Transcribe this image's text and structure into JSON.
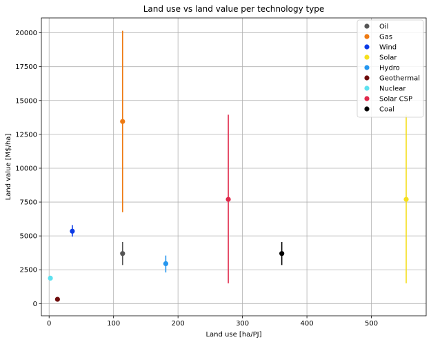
{
  "chart_data": {
    "type": "scatter",
    "title": "Land use vs land value per technology type",
    "xlabel": "Land use [ha/PJ]",
    "ylabel": "Land value [M$/ha]",
    "xlim": [
      -12,
      585
    ],
    "ylim": [
      -900,
      21100
    ],
    "xticks": [
      0,
      100,
      200,
      300,
      400,
      500
    ],
    "yticks": [
      0,
      2500,
      5000,
      7500,
      10000,
      12500,
      15000,
      17500,
      20000
    ],
    "grid": true,
    "legend_position": "top-right",
    "series": [
      {
        "name": "Oil",
        "color": "#555555",
        "x": 114,
        "y": 3700,
        "err_low": 2850,
        "err_high": 4550
      },
      {
        "name": "Gas",
        "color": "#ee7a12",
        "x": 114,
        "y": 13450,
        "err_low": 6750,
        "err_high": 20150
      },
      {
        "name": "Wind",
        "color": "#0c3be6",
        "x": 36,
        "y": 5350,
        "err_low": 4950,
        "err_high": 5800
      },
      {
        "name": "Solar",
        "color": "#f5df1e",
        "x": 554,
        "y": 7700,
        "err_low": 1500,
        "err_high": 13950
      },
      {
        "name": "Hydro",
        "color": "#2596ef",
        "x": 181,
        "y": 2950,
        "err_low": 2300,
        "err_high": 3550
      },
      {
        "name": "Geothermal",
        "color": "#6e0c0c",
        "x": 13,
        "y": 320,
        "err_low": 180,
        "err_high": 460
      },
      {
        "name": "Nuclear",
        "color": "#5ee1ef",
        "x": 2,
        "y": 1880,
        "err_low": 1800,
        "err_high": 1960
      },
      {
        "name": "Solar CSP",
        "color": "#e02a4c",
        "x": 278,
        "y": 7700,
        "err_low": 1500,
        "err_high": 13950
      },
      {
        "name": "Coal",
        "color": "#000000",
        "x": 361,
        "y": 3700,
        "err_low": 2850,
        "err_high": 4550
      }
    ]
  }
}
